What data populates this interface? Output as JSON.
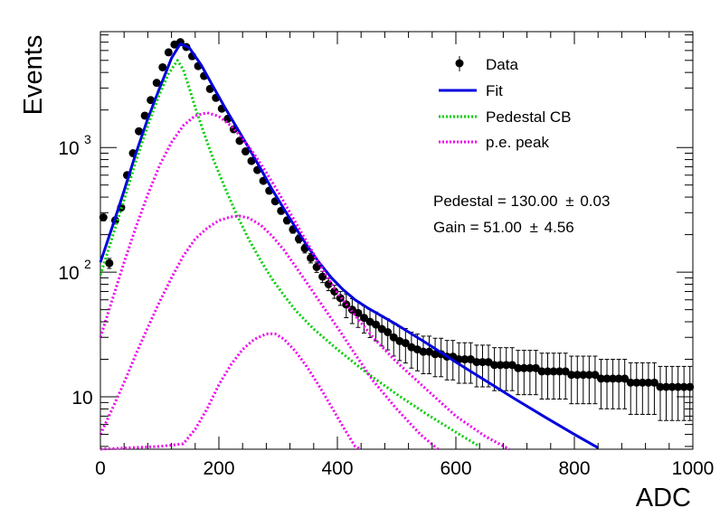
{
  "chart_data": {
    "type": "scatter",
    "xlabel": "ADC",
    "ylabel": "Events",
    "xlim": [
      0,
      1000
    ],
    "ylim": [
      3.8,
      8500
    ],
    "yscale": "log",
    "grid": false,
    "legend_position": "top-right",
    "x_ticks": [
      {
        "v": 0,
        "label": "0"
      },
      {
        "v": 200,
        "label": "200"
      },
      {
        "v": 400,
        "label": "400"
      },
      {
        "v": 600,
        "label": "600"
      },
      {
        "v": 800,
        "label": "800"
      },
      {
        "v": 1000,
        "label": "1000"
      }
    ],
    "y_ticks": [
      {
        "v": 10,
        "label": "10"
      },
      {
        "v": 100,
        "label": "10",
        "sup": "2"
      },
      {
        "v": 1000,
        "label": "10",
        "sup": "3"
      }
    ],
    "series": [
      {
        "name": "Data",
        "kind": "points",
        "color": "#000000",
        "points": [
          [
            5,
            275
          ],
          [
            15,
            118
          ],
          [
            25,
            260
          ],
          [
            35,
            330
          ],
          [
            45,
            600
          ],
          [
            55,
            900
          ],
          [
            65,
            1350
          ],
          [
            75,
            1800
          ],
          [
            85,
            2400
          ],
          [
            95,
            3300
          ],
          [
            105,
            4400
          ],
          [
            115,
            5800
          ],
          [
            125,
            6700
          ],
          [
            135,
            7000
          ],
          [
            145,
            6400
          ],
          [
            155,
            5400
          ],
          [
            165,
            4500
          ],
          [
            175,
            3750
          ],
          [
            185,
            2950
          ],
          [
            195,
            2500
          ],
          [
            205,
            2050
          ],
          [
            215,
            1700
          ],
          [
            225,
            1400
          ],
          [
            235,
            1130
          ],
          [
            245,
            930
          ],
          [
            255,
            780
          ],
          [
            265,
            660
          ],
          [
            275,
            540
          ],
          [
            285,
            450
          ],
          [
            295,
            370
          ],
          [
            305,
            310
          ],
          [
            315,
            260
          ],
          [
            325,
            220
          ],
          [
            335,
            185
          ],
          [
            345,
            155
          ],
          [
            355,
            130
          ],
          [
            365,
            110
          ],
          [
            375,
            92
          ],
          [
            385,
            80
          ],
          [
            395,
            70
          ],
          [
            405,
            62
          ],
          [
            415,
            55
          ],
          [
            425,
            50
          ],
          [
            435,
            47
          ],
          [
            445,
            43
          ],
          [
            455,
            40
          ],
          [
            465,
            38
          ],
          [
            475,
            35
          ],
          [
            485,
            33
          ],
          [
            495,
            30
          ],
          [
            505,
            28
          ],
          [
            515,
            27
          ],
          [
            525,
            25
          ],
          [
            535,
            24
          ],
          [
            545,
            23
          ],
          [
            555,
            23
          ],
          [
            565,
            22
          ],
          [
            575,
            22
          ],
          [
            585,
            21
          ],
          [
            595,
            21
          ],
          [
            605,
            20
          ],
          [
            615,
            20
          ],
          [
            625,
            20
          ],
          [
            635,
            19
          ],
          [
            645,
            19
          ],
          [
            655,
            19
          ],
          [
            665,
            18
          ],
          [
            675,
            18
          ],
          [
            685,
            18
          ],
          [
            695,
            18
          ],
          [
            705,
            17
          ],
          [
            715,
            17
          ],
          [
            725,
            17
          ],
          [
            735,
            17
          ],
          [
            745,
            16
          ],
          [
            755,
            16
          ],
          [
            765,
            16
          ],
          [
            775,
            16
          ],
          [
            785,
            16
          ],
          [
            795,
            15
          ],
          [
            805,
            15
          ],
          [
            815,
            15
          ],
          [
            825,
            15
          ],
          [
            835,
            15
          ],
          [
            845,
            14
          ],
          [
            855,
            14
          ],
          [
            865,
            14
          ],
          [
            875,
            14
          ],
          [
            885,
            14
          ],
          [
            895,
            13
          ],
          [
            905,
            13
          ],
          [
            915,
            13
          ],
          [
            925,
            13
          ],
          [
            935,
            13
          ],
          [
            945,
            12
          ],
          [
            955,
            12
          ],
          [
            965,
            12
          ],
          [
            975,
            12
          ],
          [
            985,
            12
          ],
          [
            995,
            12
          ]
        ]
      },
      {
        "name": "Fit",
        "kind": "line",
        "color": "#0000dd",
        "points": [
          [
            0,
            120
          ],
          [
            20,
            230
          ],
          [
            40,
            450
          ],
          [
            60,
            900
          ],
          [
            80,
            1700
          ],
          [
            100,
            3000
          ],
          [
            120,
            5200
          ],
          [
            135,
            6800
          ],
          [
            150,
            6300
          ],
          [
            170,
            4600
          ],
          [
            190,
            3100
          ],
          [
            210,
            2100
          ],
          [
            230,
            1450
          ],
          [
            250,
            1000
          ],
          [
            270,
            680
          ],
          [
            290,
            460
          ],
          [
            310,
            320
          ],
          [
            330,
            225
          ],
          [
            350,
            160
          ],
          [
            370,
            118
          ],
          [
            390,
            90
          ],
          [
            410,
            72
          ],
          [
            430,
            60
          ],
          [
            450,
            52
          ],
          [
            500,
            38
          ],
          [
            550,
            27
          ],
          [
            600,
            19
          ],
          [
            650,
            13.5
          ],
          [
            700,
            9.6
          ],
          [
            750,
            6.9
          ],
          [
            800,
            5.0
          ],
          [
            840,
            3.9
          ]
        ]
      },
      {
        "name": "Pedestal CB",
        "kind": "dotted",
        "color": "#00cc00",
        "points": [
          [
            0,
            95
          ],
          [
            20,
            190
          ],
          [
            40,
            380
          ],
          [
            60,
            780
          ],
          [
            80,
            1500
          ],
          [
            100,
            2700
          ],
          [
            115,
            3900
          ],
          [
            130,
            5000
          ],
          [
            140,
            4200
          ],
          [
            150,
            3000
          ],
          [
            160,
            2100
          ],
          [
            175,
            1300
          ],
          [
            190,
            820
          ],
          [
            210,
            480
          ],
          [
            230,
            290
          ],
          [
            250,
            185
          ],
          [
            270,
            125
          ],
          [
            290,
            88
          ],
          [
            310,
            65
          ],
          [
            330,
            49
          ],
          [
            360,
            35
          ],
          [
            400,
            24
          ],
          [
            450,
            15.5
          ],
          [
            500,
            10.5
          ],
          [
            550,
            7.3
          ],
          [
            600,
            5.2
          ],
          [
            640,
            4.0
          ]
        ]
      },
      {
        "name": "p.e. peak",
        "kind": "dotted",
        "color": "#ee00ee",
        "points": [
          [
            0,
            30
          ],
          [
            20,
            60
          ],
          [
            40,
            120
          ],
          [
            60,
            230
          ],
          [
            80,
            420
          ],
          [
            100,
            720
          ],
          [
            120,
            1100
          ],
          [
            140,
            1500
          ],
          [
            160,
            1800
          ],
          [
            180,
            1900
          ],
          [
            200,
            1780
          ],
          [
            220,
            1500
          ],
          [
            240,
            1180
          ],
          [
            260,
            880
          ],
          [
            280,
            630
          ],
          [
            300,
            440
          ],
          [
            320,
            300
          ],
          [
            340,
            205
          ],
          [
            360,
            140
          ],
          [
            380,
            96
          ],
          [
            400,
            68
          ],
          [
            430,
            45
          ],
          [
            460,
            30
          ],
          [
            500,
            19
          ],
          [
            550,
            11.5
          ],
          [
            600,
            7.0
          ],
          [
            650,
            4.8
          ],
          [
            690,
            3.8
          ]
        ]
      },
      {
        "name": "p.e. peak",
        "kind": "dotted",
        "color": "#ee00ee",
        "legend": false,
        "points": [
          [
            0,
            5
          ],
          [
            20,
            8
          ],
          [
            40,
            13
          ],
          [
            60,
            22
          ],
          [
            80,
            36
          ],
          [
            100,
            58
          ],
          [
            120,
            90
          ],
          [
            140,
            135
          ],
          [
            160,
            185
          ],
          [
            180,
            225
          ],
          [
            200,
            260
          ],
          [
            220,
            278
          ],
          [
            235,
            282
          ],
          [
            250,
            272
          ],
          [
            270,
            240
          ],
          [
            290,
            195
          ],
          [
            310,
            150
          ],
          [
            330,
            110
          ],
          [
            350,
            80
          ],
          [
            370,
            58
          ],
          [
            400,
            36
          ],
          [
            430,
            22
          ],
          [
            460,
            13.5
          ],
          [
            500,
            8
          ],
          [
            540,
            5
          ],
          [
            570,
            3.8
          ]
        ]
      },
      {
        "name": "p.e. peak",
        "kind": "dotted",
        "color": "#ee00ee",
        "legend": false,
        "points": [
          [
            0,
            3.8
          ],
          [
            50,
            3.9
          ],
          [
            100,
            4.0
          ],
          [
            140,
            4.2
          ],
          [
            160,
            5.5
          ],
          [
            180,
            8
          ],
          [
            200,
            12.5
          ],
          [
            220,
            18
          ],
          [
            240,
            24
          ],
          [
            260,
            29
          ],
          [
            280,
            32
          ],
          [
            295,
            32
          ],
          [
            310,
            29
          ],
          [
            330,
            23
          ],
          [
            350,
            17
          ],
          [
            370,
            12
          ],
          [
            390,
            8.3
          ],
          [
            410,
            5.7
          ],
          [
            430,
            4.0
          ],
          [
            440,
            3.8
          ]
        ]
      }
    ],
    "annotations": [
      {
        "text": "Pedestal = 130.00",
        "pm": "±",
        "err": "0.03"
      },
      {
        "text": "Gain = 51.00",
        "pm": "±",
        "err": "4.56"
      }
    ]
  }
}
